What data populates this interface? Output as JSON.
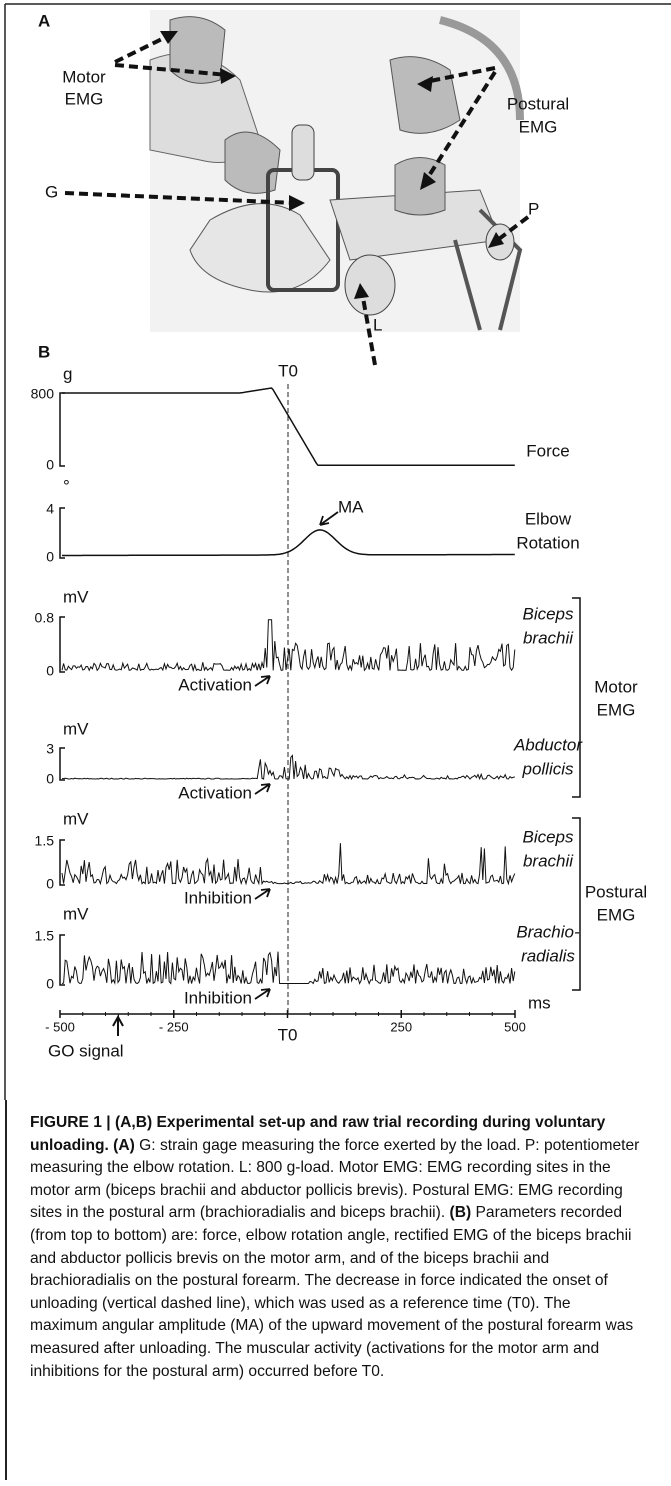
{
  "panel_a": {
    "label": "A",
    "labels": {
      "motor_emg": [
        "Motor",
        "EMG"
      ],
      "postural_emg": [
        "Postural",
        "EMG"
      ],
      "g": "G",
      "p": "P",
      "l": "L"
    }
  },
  "panel_b": {
    "label": "B",
    "t0_top": "T0",
    "rows": [
      {
        "unit": "g",
        "ticks": [
          "800",
          "0"
        ],
        "name": [
          "Force"
        ]
      },
      {
        "unit": "°",
        "ticks": [
          "4",
          "0"
        ],
        "name": [
          "Elbow",
          "Rotation"
        ],
        "annotation": "MA"
      },
      {
        "unit": "mV",
        "ticks": [
          "0.8",
          "0"
        ],
        "name": [
          "Biceps",
          "brachii"
        ],
        "annotation": "Activation"
      },
      {
        "unit": "mV",
        "ticks": [
          "3",
          "0"
        ],
        "name": [
          "Abductor",
          "pollicis"
        ],
        "annotation": "Activation"
      },
      {
        "unit": "mV",
        "ticks": [
          "1.5",
          "0"
        ],
        "name": [
          "Biceps",
          "brachii"
        ],
        "annotation": "Inhibition"
      },
      {
        "unit": "mV",
        "ticks": [
          "1.5",
          "0"
        ],
        "name": [
          "Brachio-",
          "radialis"
        ],
        "annotation": "Inhibition"
      }
    ],
    "groups": {
      "motor": [
        "Motor",
        "EMG"
      ],
      "postural": [
        "Postural",
        "EMG"
      ]
    },
    "x_ticks": [
      "- 500",
      "- 250",
      "T0",
      "250",
      "500"
    ],
    "x_unit": "ms",
    "go_signal": "GO signal"
  },
  "caption": {
    "title": "FIGURE 1 | (A,B) Experimental set-up and raw trial recording during voluntary unloading.",
    "a_label": "(A)",
    "a_text": "G: strain gage measuring the force exerted by the load. P: potentiometer measuring the elbow rotation. L: 800 g-load. Motor EMG: EMG recording sites in the motor arm (biceps brachii and abductor pollicis brevis). Postural EMG: EMG recording sites in the postural arm (brachioradialis and biceps brachii).",
    "b_label": "(B)",
    "b_text": "Parameters recorded (from top to bottom) are: force, elbow rotation angle, rectified EMG of the biceps brachii and abductor pollicis brevis on the motor arm, and of the biceps brachii and brachioradialis on the postural forearm. The decrease in force indicated the onset of unloading (vertical dashed line), which was used as a reference time (T0). The maximum angular amplitude (MA) of the upward movement of the postural forearm was measured after unloading. The muscular activity (activations for the motor arm and inhibitions for the postural arm) occurred before T0."
  }
}
